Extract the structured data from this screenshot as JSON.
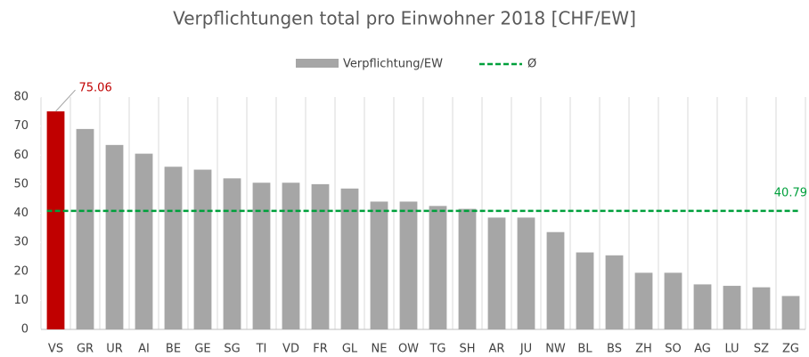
{
  "chart_data": {
    "type": "bar",
    "title": "Verpflichtungen total pro Einwohner 2018 [CHF/EW]",
    "categories": [
      "VS",
      "GR",
      "UR",
      "AI",
      "BE",
      "GE",
      "SG",
      "TI",
      "VD",
      "FR",
      "GL",
      "NE",
      "OW",
      "TG",
      "SH",
      "AR",
      "JU",
      "NW",
      "BL",
      "BS",
      "ZH",
      "SO",
      "AG",
      "LU",
      "SZ",
      "ZG"
    ],
    "series": [
      {
        "name": "Verpflichtung/EW",
        "color": "#a6a6a6",
        "colors": [
          "#c00000",
          "#a6a6a6",
          "#a6a6a6",
          "#a6a6a6",
          "#a6a6a6",
          "#a6a6a6",
          "#a6a6a6",
          "#a6a6a6",
          "#a6a6a6",
          "#a6a6a6",
          "#a6a6a6",
          "#a6a6a6",
          "#a6a6a6",
          "#a6a6a6",
          "#a6a6a6",
          "#a6a6a6",
          "#a6a6a6",
          "#a6a6a6",
          "#a6a6a6",
          "#a6a6a6",
          "#a6a6a6",
          "#a6a6a6",
          "#a6a6a6",
          "#a6a6a6",
          "#a6a6a6",
          "#a6a6a6"
        ],
        "values": [
          75.06,
          69,
          63.5,
          60.5,
          56,
          55,
          52,
          50.5,
          50.5,
          50,
          48.5,
          44,
          44,
          42.5,
          41.5,
          38.5,
          38.5,
          33.5,
          26.5,
          25.5,
          19.5,
          19.5,
          15.5,
          15,
          14.5,
          11.5
        ],
        "label_color": "#c00000"
      }
    ],
    "average": {
      "name": "Ø",
      "value": 40.79,
      "color": "#00a03c"
    },
    "ylim": [
      0,
      80
    ],
    "yticks": [
      0,
      10,
      20,
      30,
      40,
      50,
      60,
      70,
      80
    ],
    "legend": "top"
  }
}
